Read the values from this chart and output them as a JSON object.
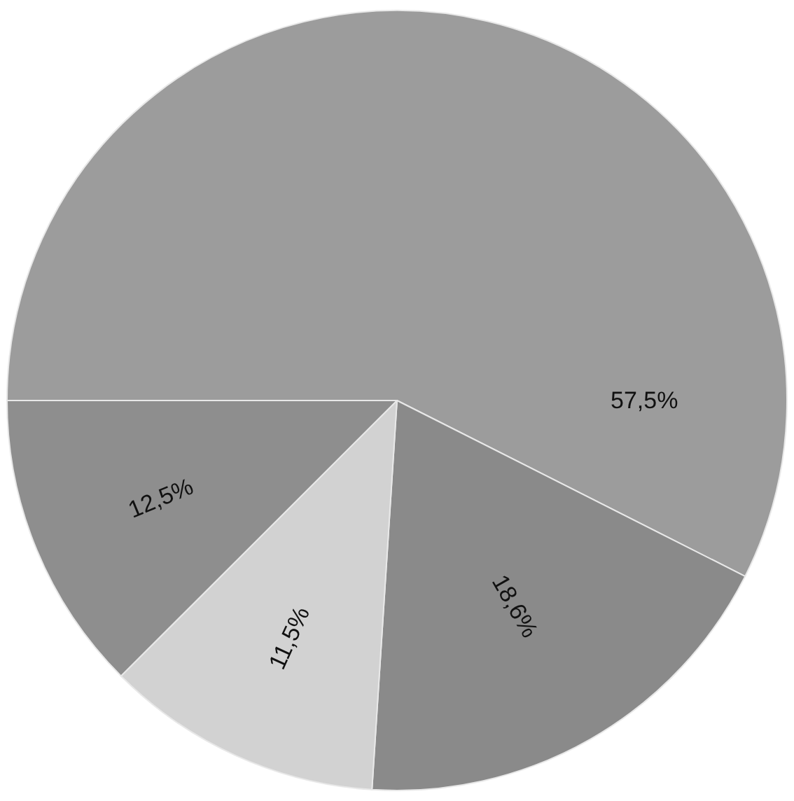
{
  "chart_data": {
    "type": "pie",
    "categories": [
      null,
      null,
      null,
      null
    ],
    "values": [
      57.5,
      18.6,
      11.5,
      12.5
    ],
    "value_labels": [
      "57,5%",
      "18,6%",
      "11,5%",
      "12,5%"
    ],
    "colors": [
      "#9c9c9c",
      "#8a8a8a",
      "#d2d2d2",
      "#8e8e8e"
    ],
    "legend": false
  }
}
